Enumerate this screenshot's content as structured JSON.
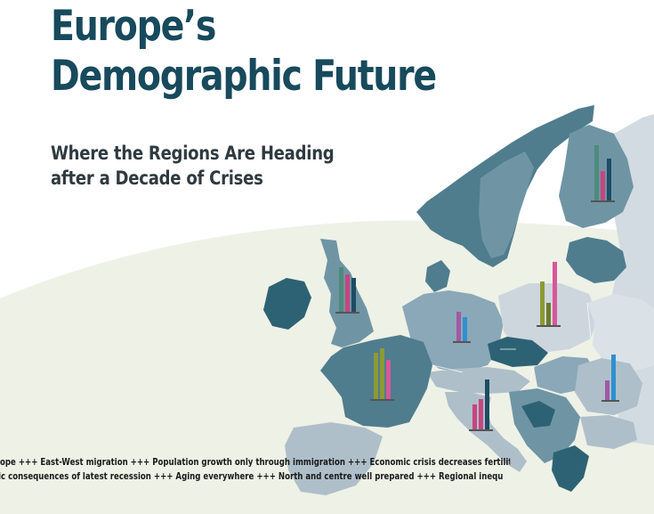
{
  "header": {
    "title_line1": "Europe’s",
    "title_line2": "Demographic Future",
    "subtitle_line1": "Where the Regions Are Heading",
    "subtitle_line2": "after a Decade of Crises"
  },
  "ticker": {
    "line1": "ope +++ East-West migration +++ Population growth only through immigration +++ Economic crisis decreases fertility +++ Rapid aging in the east +++ Econo",
    "line2": "hic consequences of latest recession +++ Aging everywhere +++ North and centre well prepared +++ Regional inequalities +++ Growing number of migrants"
  },
  "colors": {
    "title": "#174a5c",
    "sea_band": "#eef1e6",
    "country_dark": "#4f7d8e",
    "country_mid": "#6f95a5",
    "country_light": "#aebfca",
    "country_pale": "#cdd6dd",
    "bar_teal": "#4e8a7c",
    "bar_magenta": "#c8457f",
    "bar_navy": "#1d4d63",
    "bar_olive": "#8d9a33",
    "bar_pink": "#d8579a",
    "bar_purple": "#a05aa2",
    "bar_blue": "#2f8fd0"
  }
}
